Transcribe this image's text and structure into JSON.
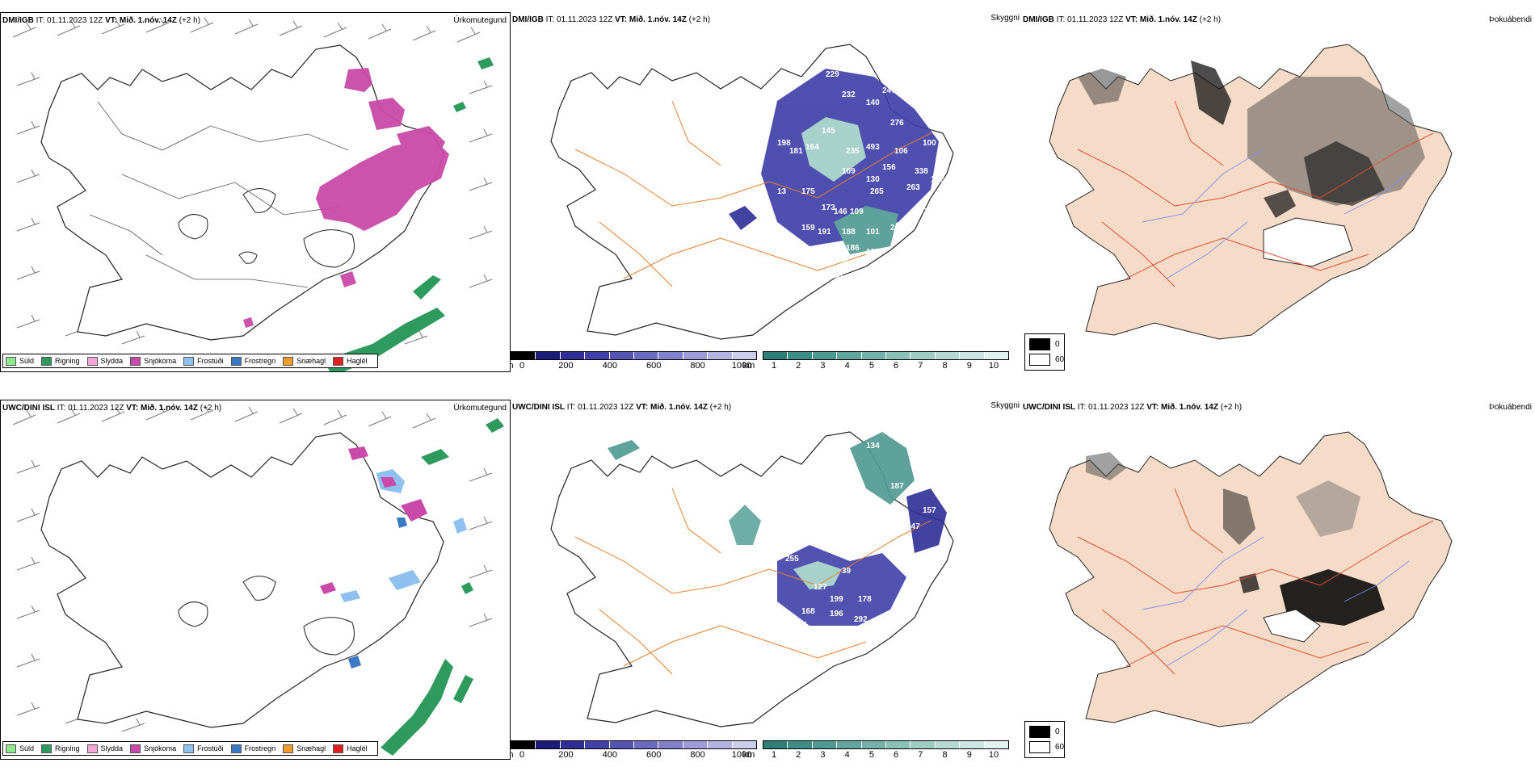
{
  "rows": [
    {
      "model": "DMI/IGB",
      "init_time": "01.11.2023 12Z",
      "valid_time": "Mið. 1.nóv. 14Z",
      "lead": "(+2 h)",
      "it_label": "IT:",
      "vt_label": "VT:",
      "panel_titles": {
        "precip": "Úrkomutegund",
        "cloud": "Skyggni",
        "fog": "Þokuábendi"
      },
      "cloud_labels": [
        "229",
        "232",
        "140",
        "247",
        "276",
        "104",
        "100",
        "118",
        "198",
        "181",
        "164",
        "145",
        "235",
        "493",
        "106",
        "156",
        "109",
        "130",
        "265",
        "338",
        "162",
        "263",
        "87",
        "13",
        "175",
        "173",
        "146",
        "109",
        "159",
        "191",
        "188",
        "101",
        "241",
        "186",
        "197",
        "245",
        "64"
      ]
    },
    {
      "model": "UWC/DINI ISL",
      "init_time": "01.11.2023 12Z",
      "valid_time": "Mið. 1.nóv. 14Z",
      "lead": "(+2 h)",
      "it_label": "IT:",
      "vt_label": "VT:",
      "panel_titles": {
        "precip": "Úrkomutegund",
        "cloud": "Skyggni",
        "fog": "Þokuábendi"
      },
      "cloud_labels": [
        "134",
        "136",
        "187",
        "157",
        "147",
        "255",
        "39",
        "127",
        "199",
        "178",
        "168",
        "196",
        "292",
        "70",
        "204",
        "160",
        "188",
        "269"
      ]
    }
  ],
  "precip_legend": [
    {
      "label": "Súld",
      "color": "#8ee88e"
    },
    {
      "label": "Rigning",
      "color": "#2e9a5e"
    },
    {
      "label": "Slydda",
      "color": "#f4a6d7"
    },
    {
      "label": "Snjókoma",
      "color": "#c94aa8"
    },
    {
      "label": "Frostúði",
      "color": "#8ec0f0"
    },
    {
      "label": "Frostregn",
      "color": "#3a78c4"
    },
    {
      "label": "Snæhagl",
      "color": "#f09a2a"
    },
    {
      "label": "Haglél",
      "color": "#e02020"
    }
  ],
  "cloudbase_scale": {
    "unit": "m",
    "ticks": [
      "0",
      "200",
      "400",
      "600",
      "800",
      "1000"
    ],
    "colors": [
      "#000000",
      "#1c1c7a",
      "#2e2e96",
      "#4040a8",
      "#5454b4",
      "#6a6ac0",
      "#8282cc",
      "#9c9cd8",
      "#b4b4e2",
      "#cccceb"
    ]
  },
  "visibility_scale": {
    "unit": "km",
    "ticks": [
      "1",
      "2",
      "3",
      "4",
      "5",
      "6",
      "7",
      "8",
      "9",
      "10"
    ],
    "colors": [
      "#2d7f78",
      "#3d8c85",
      "#4e9991",
      "#60a69e",
      "#74b3ab",
      "#89c0b8",
      "#9fcdc6",
      "#b5dad4",
      "#cbe6e2",
      "#e2f2ef"
    ]
  },
  "fog_legend": [
    {
      "label": "0",
      "color": "#000000"
    },
    {
      "label": "60",
      "color": "#ffffff"
    }
  ],
  "colors": {
    "coast": "#222222",
    "roads": "#e8802a",
    "fog_land": "#f6dcc8",
    "fog_roads": "#e05030",
    "rivers": "#7a8ef0",
    "snow": "#c94aa8",
    "rain": "#2e9a5e"
  }
}
